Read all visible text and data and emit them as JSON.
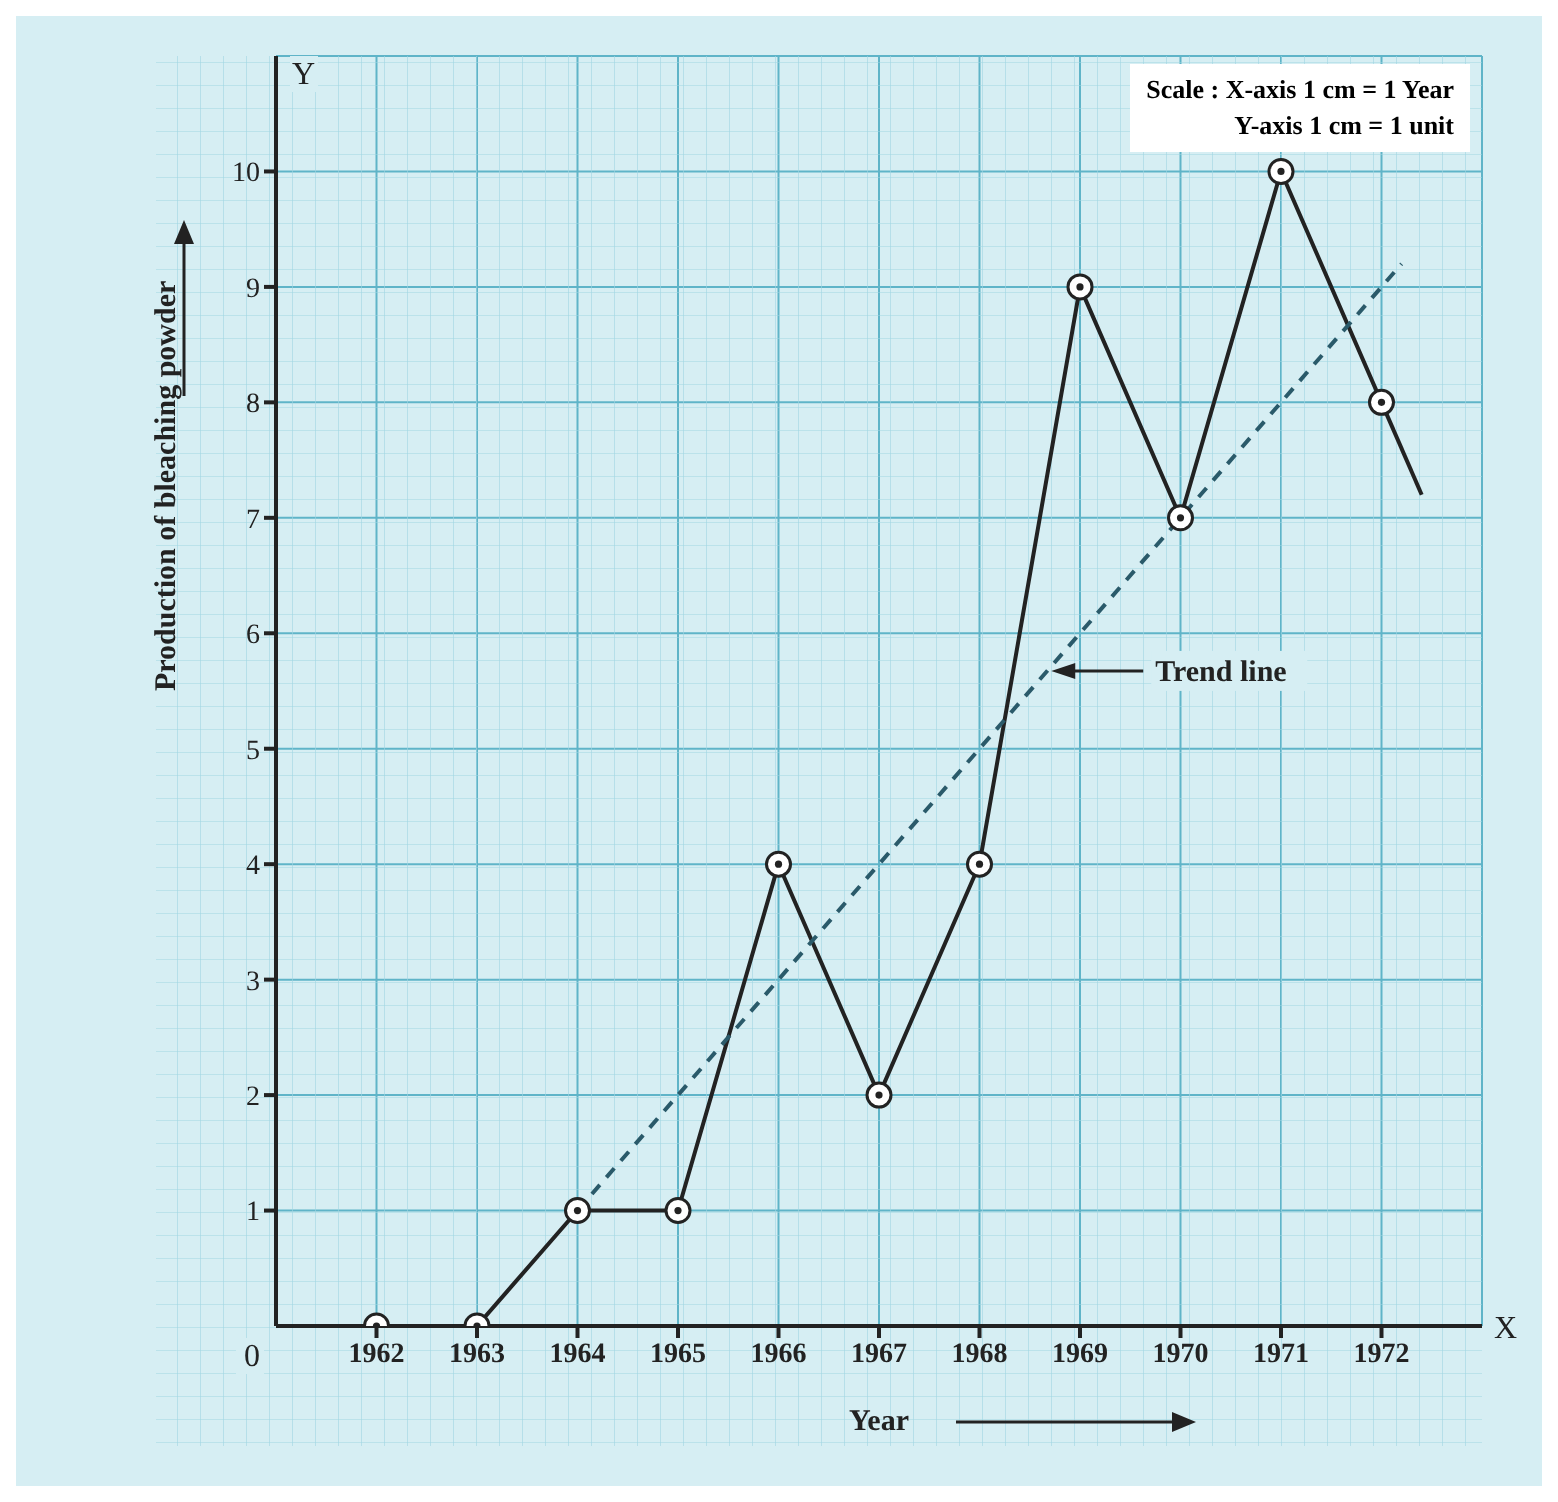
{
  "chart_data": {
    "type": "line",
    "xlabel": "Year",
    "ylabel": "Production of bleaching powder",
    "xlim": [
      1961,
      1973
    ],
    "xticks": [
      1962,
      1963,
      1964,
      1965,
      1966,
      1967,
      1968,
      1969,
      1970,
      1971,
      1972
    ],
    "ylim": [
      0,
      11
    ],
    "yticks": [
      1,
      2,
      3,
      4,
      5,
      6,
      7,
      8,
      9,
      10
    ],
    "grid": true,
    "series": [
      {
        "color": "#222222",
        "marker": "circle",
        "line_style": "solid",
        "x": [
          1962,
          1963,
          1964,
          1965,
          1966,
          1967,
          1968,
          1969,
          1970,
          1971,
          1972
        ],
        "values": [
          0,
          0,
          1,
          1,
          4,
          2,
          4,
          9,
          7,
          10,
          8
        ]
      },
      {
        "color": "#222222",
        "line_style": "solid",
        "x": [
          1972,
          1972.4
        ],
        "values": [
          8,
          7.2
        ]
      },
      {
        "name": "Trend line",
        "color": "#2a5a6a",
        "line_style": "dashed",
        "x": [
          1964,
          1972.2
        ],
        "values": [
          1,
          9.2
        ]
      }
    ],
    "annotations": [
      "X",
      "Y",
      "0",
      "Scale : X-axis 1 cm = 1 Year",
      "Y-axis 1 cm = 1 unit"
    ]
  }
}
